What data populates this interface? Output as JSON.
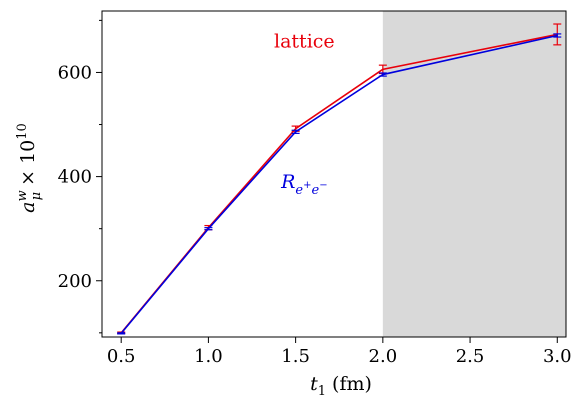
{
  "chart_data": {
    "type": "line",
    "title": "",
    "xlabel": "t_1 (fm)",
    "ylabel": "a_μ^w × 10^10",
    "xlim": [
      0.39,
      3.05
    ],
    "ylim": [
      92,
      718
    ],
    "xticks": [
      0.5,
      1.0,
      1.5,
      2.0,
      2.5,
      3.0
    ],
    "xtick_labels": [
      "0.5",
      "1.0",
      "1.5",
      "2.0",
      "2.5",
      "3.0"
    ],
    "yticks": [
      200,
      400,
      600
    ],
    "ytick_labels": [
      "200",
      "400",
      "600"
    ],
    "grid": false,
    "shaded_region": {
      "x_from": 2.0,
      "x_to": 3.05,
      "color": "#d9d9d9"
    },
    "series": [
      {
        "name": "lattice",
        "color": "#e8000b",
        "x": [
          0.5,
          1.0,
          1.5,
          2.0,
          3.0
        ],
        "y": [
          100,
          302,
          492,
          606,
          673
        ],
        "yerr": [
          1.5,
          4,
          5,
          8,
          20
        ]
      },
      {
        "name": "R_{e+e-}",
        "color": "#0000dd",
        "x": [
          0.5,
          1.0,
          1.5,
          2.0,
          3.0
        ],
        "y": [
          99,
          300,
          486,
          596,
          671
        ],
        "yerr": [
          1,
          2,
          3,
          3,
          3
        ]
      }
    ],
    "annotations": [
      {
        "text": "lattice",
        "series": 0,
        "at": [
          1.55,
          648
        ]
      },
      {
        "text": "R_{e+e-}",
        "series": 1,
        "at": [
          1.55,
          378
        ]
      }
    ]
  }
}
